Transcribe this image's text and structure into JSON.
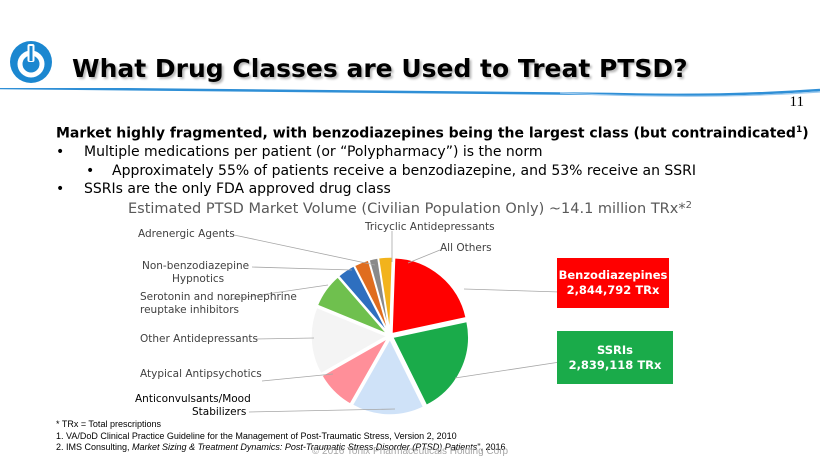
{
  "slide": {
    "title": "What Drug Classes are Used to Treat PTSD?",
    "slide_number": "11",
    "colors": {
      "accent": "#2f8fd6",
      "logo_blue": "#1b87d0"
    }
  },
  "bullets": {
    "lead": "Market highly fragmented, with benzodiazepines being the largest class (but contraindicated",
    "lead_sup": "1",
    "lead_end": ")",
    "items": [
      {
        "dot": "•",
        "text": "Multiple medications per patient (or “Polypharmacy”) is the norm"
      },
      {
        "dot": "•",
        "text": "Approximately 55% of patients receive a benzodiazepine, and 53% receive an SSRI"
      },
      {
        "dot": "•",
        "text": "SSRIs are the only FDA approved drug class"
      }
    ]
  },
  "chart_data": {
    "type": "pie",
    "title": "Estimated PTSD Market Volume (Civilian Population Only) ~14.1 million TRx*",
    "title_sup": "2",
    "units": "TRx",
    "slices": [
      {
        "label": "Benzodiazepines",
        "value": 2844792,
        "color": "#ff0000"
      },
      {
        "label": "SSRIs",
        "value": 2839118,
        "color": "#1aab4a"
      },
      {
        "label": "Anticonvulsants/Mood Stabilizers",
        "value": 2100000,
        "color": "#cfe2f8"
      },
      {
        "label": "Atypical Antipsychotics",
        "value": 1150000,
        "color": "#ff8f99"
      },
      {
        "label": "Other Antidepressants",
        "value": 1950000,
        "color": "#f4f4f4"
      },
      {
        "label": "Serotonin and norepinephrine reuptake inhibitors",
        "value": 1000000,
        "color": "#6fc04e"
      },
      {
        "label": "Non-benzodiazepine Hypnotics",
        "value": 520000,
        "color": "#2e6fbf"
      },
      {
        "label": "Adrenergic Agents",
        "value": 430000,
        "color": "#e06d1f"
      },
      {
        "label": "Tricyclic Antidepressants",
        "value": 260000,
        "color": "#8a8a8a"
      },
      {
        "label": "All Others",
        "value": 400000,
        "color": "#f2b31c"
      }
    ],
    "label_lines": {
      "adrenergic": "Adrenergic Agents",
      "nonbenzo_1": "Non-benzodiazepine",
      "nonbenzo_2": "Hypnotics",
      "snri_1": "Serotonin and norepinephrine",
      "snri_2": "reuptake inhibitors",
      "other_ad": "Other Antidepressants",
      "atypical": "Atypical Antipsychotics",
      "anticonv_1": "Anticonvulsants/Mood",
      "anticonv_2": "Stabilizers",
      "tricyclic": "Tricyclic Antidepressants",
      "all_others": "All Others"
    },
    "callouts": [
      {
        "name": "Benzodiazepines",
        "value_text": "2,844,792 TRx"
      },
      {
        "name": "SSRIs",
        "value_text": "2,839,118 TRx"
      }
    ]
  },
  "footnotes": {
    "trx": "* TRx = Total prescriptions",
    "ref1": "1. VA/DoD Clinical Practice Guideline for the Management of Post-Traumatic Stress, Version 2, 2010",
    "ref2_prefix": "2. IMS Consulting, ",
    "ref2_italic": "Market Sizing & Treatment Dynamics: Post-Traumatic Stress Disorder (PTSD) Patients",
    "ref2_suffix": "\", 2016"
  },
  "copyright": "© 2016 Tonix Pharmaceuticals Holding Corp"
}
